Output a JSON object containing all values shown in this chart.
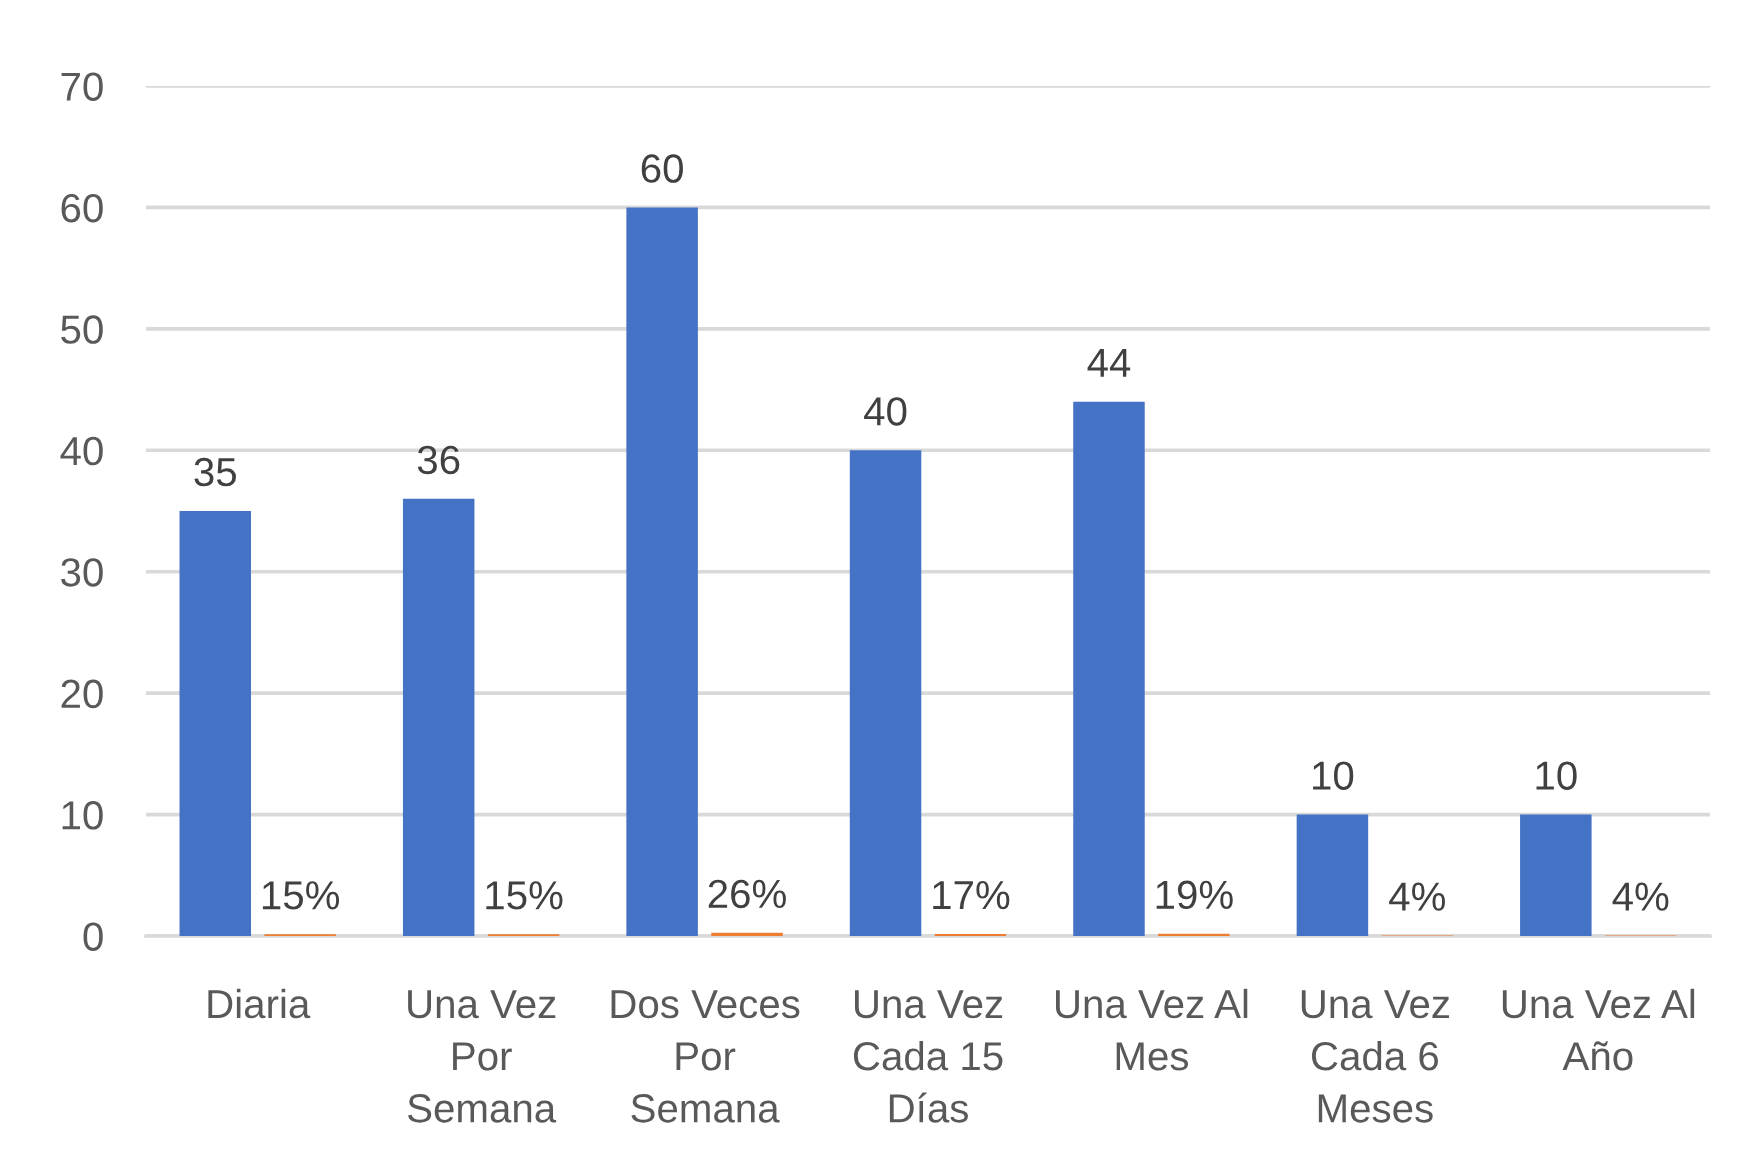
{
  "chart_data": {
    "type": "bar",
    "categories": [
      "Diaria",
      "Una Vez Por Semana",
      "Dos Veces Por Semana",
      "Una Vez Cada 15 Días",
      "Una Vez Al Mes",
      "Una Vez Cada 6 Meses",
      "Una Vez Al Año"
    ],
    "series": [
      {
        "color": "#4472c4",
        "values": [
          35,
          36,
          60,
          40,
          44,
          10,
          10
        ],
        "value_labels": [
          "35",
          "36",
          "60",
          "40",
          "44",
          "10",
          "10"
        ]
      },
      {
        "color": "#ed7d31",
        "values": [
          0.15,
          0.15,
          0.26,
          0.17,
          0.19,
          0.04,
          0.04
        ],
        "value_labels": [
          "15%",
          "15%",
          "26%",
          "17%",
          "19%",
          "4%",
          "4%"
        ]
      }
    ],
    "ylim": [
      0,
      70
    ],
    "yticks": [
      0,
      10,
      20,
      30,
      40,
      50,
      60,
      70
    ],
    "grid": "y"
  }
}
